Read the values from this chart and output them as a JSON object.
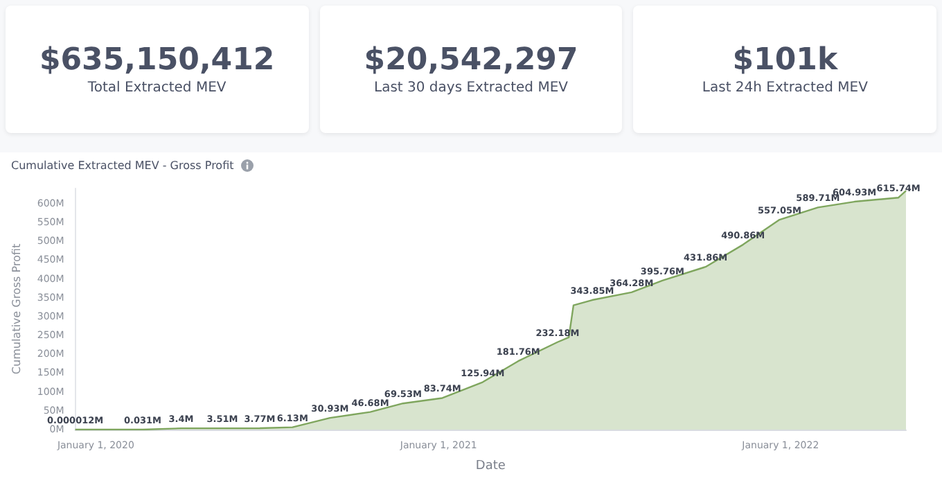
{
  "chart_data": [
    {
      "type": "other",
      "title": "$635,150,412",
      "subtitle": "Total Extracted MEV"
    },
    {
      "type": "other",
      "title": "$20,542,297",
      "subtitle": "Last 30 days Extracted MEV"
    },
    {
      "type": "other",
      "title": "$101k",
      "subtitle": "Last 24h Extracted MEV"
    },
    {
      "type": "area",
      "title": "Cumulative Extracted MEV - Gross Profit",
      "xlabel": "Date",
      "ylabel": "Cumulative Gross Profit",
      "x": [
        "2019-12-10",
        "2020-02-20",
        "2020-04-01",
        "2020-05-15",
        "2020-06-24",
        "2020-07-29",
        "2020-09-07",
        "2020-10-20",
        "2020-11-24",
        "2021-01-05",
        "2021-02-17",
        "2021-03-27",
        "2021-05-08",
        "2021-05-20",
        "2021-05-25",
        "2021-06-14",
        "2021-07-26",
        "2021-08-28",
        "2021-10-13",
        "2021-11-22",
        "2021-12-31",
        "2022-02-10",
        "2022-03-21",
        "2022-05-07",
        "2022-05-15"
      ],
      "series": [
        {
          "color": "#7fa65e",
          "values": [
            1.2e-05,
            0.031,
            3.4,
            3.51,
            3.77,
            6.13,
            30.93,
            46.68,
            69.53,
            83.74,
            125.94,
            181.76,
            232.18,
            245,
            330,
            343.85,
            364.28,
            395.76,
            431.86,
            490.86,
            557.05,
            589.71,
            604.93,
            615.74,
            634
          ],
          "value_labels": [
            "0.000012M",
            "0.031M",
            "3.4M",
            "3.51M",
            "3.77M",
            "6.13M",
            "30.93M",
            "46.68M",
            "69.53M",
            "83.74M",
            "125.94M",
            "181.76M",
            "232.18M",
            null,
            null,
            "343.85M",
            "364.28M",
            "395.76M",
            "431.86M",
            "490.86M",
            "557.05M",
            "589.71M",
            "604.93M",
            "615.74M",
            null
          ]
        }
      ],
      "xlim": [
        "2019-12-10",
        "2022-05-15"
      ],
      "xticks": [
        {
          "value": "2020-01-01",
          "label": "January 1, 2020"
        },
        {
          "value": "2021-01-01",
          "label": "January 1, 2021"
        },
        {
          "value": "2022-01-01",
          "label": "January 1, 2022"
        }
      ],
      "ylim": [
        0,
        640
      ],
      "yticks": [
        {
          "value": 0,
          "label": "0M"
        },
        {
          "value": 50,
          "label": "50M"
        },
        {
          "value": 100,
          "label": "100M"
        },
        {
          "value": 150,
          "label": "150M"
        },
        {
          "value": 200,
          "label": "200M"
        },
        {
          "value": 250,
          "label": "250M"
        },
        {
          "value": 300,
          "label": "300M"
        },
        {
          "value": 350,
          "label": "350M"
        },
        {
          "value": 400,
          "label": "400M"
        },
        {
          "value": 450,
          "label": "450M"
        },
        {
          "value": 500,
          "label": "500M"
        },
        {
          "value": 550,
          "label": "550M"
        },
        {
          "value": 600,
          "label": "600M"
        }
      ]
    }
  ]
}
